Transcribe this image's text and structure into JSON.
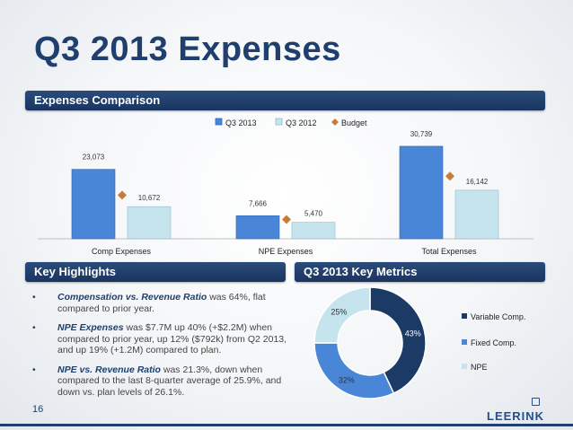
{
  "slide": {
    "title": "Q3 2013 Expenses",
    "expenses_header": "Expenses Comparison",
    "highlights_header": "Key Highlights",
    "metrics_header": "Q3 2013 Key Metrics",
    "page_number": "16",
    "logo_text": "LEERINK"
  },
  "bullets": [
    {
      "bold": "Compensation vs. Revenue Ratio",
      "text": " was 64%, flat compared to prior year."
    },
    {
      "bold": "NPE Expenses",
      "text": " was $7.7M up 40% (+$2.2M) when compared to prior year, up 12% ($792k) from Q2 2013, and up 19% (+1.2M) compared to plan."
    },
    {
      "bold": "NPE vs. Revenue Ratio",
      "text": " was 21.3%, down when compared to the last 8-quarter average of 25.9%, and down vs. plan levels of 26.1%."
    }
  ],
  "chart_data": [
    {
      "type": "bar",
      "categories": [
        "Comp Expenses",
        "NPE Expenses",
        "Total Expenses"
      ],
      "series": [
        {
          "name": "Q3 2013",
          "values": [
            23073,
            7666,
            30739
          ],
          "labels": [
            "23,073",
            "7,666",
            "30,739"
          ],
          "color": "#4a86d8"
        },
        {
          "name": "Q3 2012",
          "values": [
            10672,
            5470,
            16142
          ],
          "labels": [
            "10,672",
            "5,470",
            "16,142"
          ],
          "color": "#c5e4ee"
        },
        {
          "name": "Budget",
          "values": [
            14500,
            6400,
            20800
          ],
          "marker": "diamond",
          "color": "#c97b3a"
        }
      ],
      "ylim": [
        0,
        34000
      ],
      "legend_position": "top"
    },
    {
      "type": "pie",
      "style": "donut",
      "slices": [
        {
          "label": "Variable Comp.",
          "value": 43,
          "text": "43%",
          "color": "#1b3a66"
        },
        {
          "label": "Fixed Comp.",
          "value": 32,
          "text": "32%",
          "color": "#4a86d8"
        },
        {
          "label": "NPE",
          "value": 25,
          "text": "25%",
          "color": "#c5e4ee"
        }
      ],
      "legend_position": "right"
    }
  ]
}
